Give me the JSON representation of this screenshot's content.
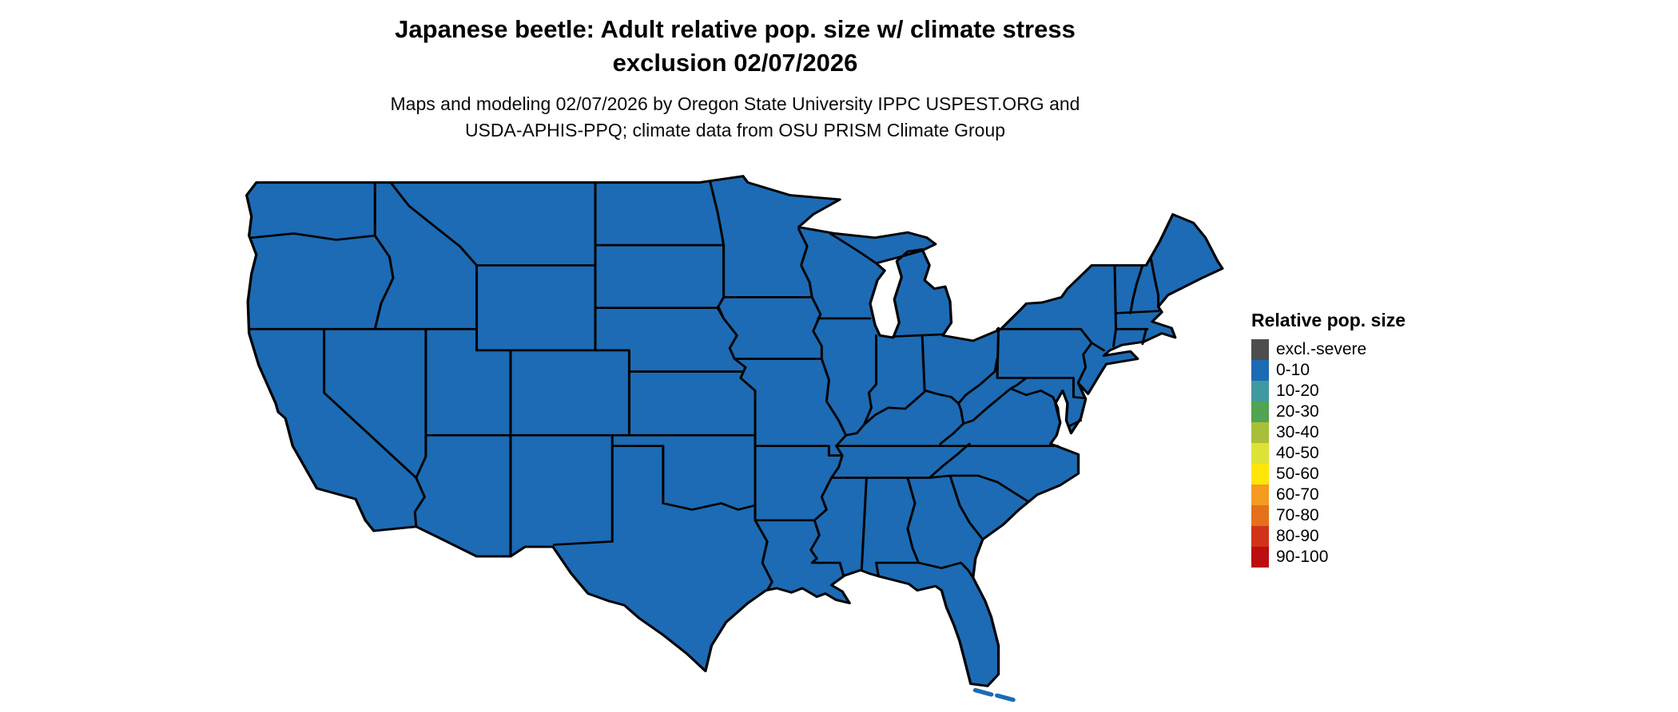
{
  "title": {
    "line1": "Japanese beetle: Adult relative pop. size w/ climate stress",
    "line2": "exclusion 02/07/2026"
  },
  "subtitle": {
    "line1": "Maps and modeling 02/07/2026 by Oregon State University IPPC USPEST.ORG and",
    "line2": "USDA-APHIS-PPQ; climate data from OSU PRISM Climate Group"
  },
  "legend": {
    "title": "Relative pop. size",
    "items": [
      {
        "label": "excl.-severe",
        "color": "#4d4d4d"
      },
      {
        "label": "0-10",
        "color": "#1c6bb4"
      },
      {
        "label": "10-20",
        "color": "#3f9aa0"
      },
      {
        "label": "20-30",
        "color": "#52a352"
      },
      {
        "label": "30-40",
        "color": "#a9bf3a"
      },
      {
        "label": "40-50",
        "color": "#dde336"
      },
      {
        "label": "50-60",
        "color": "#ffe609"
      },
      {
        "label": "60-70",
        "color": "#f59b20"
      },
      {
        "label": "70-80",
        "color": "#e4701b"
      },
      {
        "label": "80-90",
        "color": "#d0331a"
      },
      {
        "label": "90-100",
        "color": "#bd0d10"
      }
    ]
  },
  "map": {
    "region": "Contiguous United States",
    "land_color": "#1c6bb4",
    "border_color": "#000000"
  },
  "chart_data": {
    "type": "choropleth_map",
    "region": "Contiguous United States (lower 48 states)",
    "classes": [
      "excl.-severe",
      "0-10",
      "10-20",
      "20-30",
      "30-40",
      "40-50",
      "50-60",
      "60-70",
      "70-80",
      "80-90",
      "90-100"
    ],
    "state_values": "all visible states rendered in the 0-10 class color",
    "legend_position": "right"
  }
}
